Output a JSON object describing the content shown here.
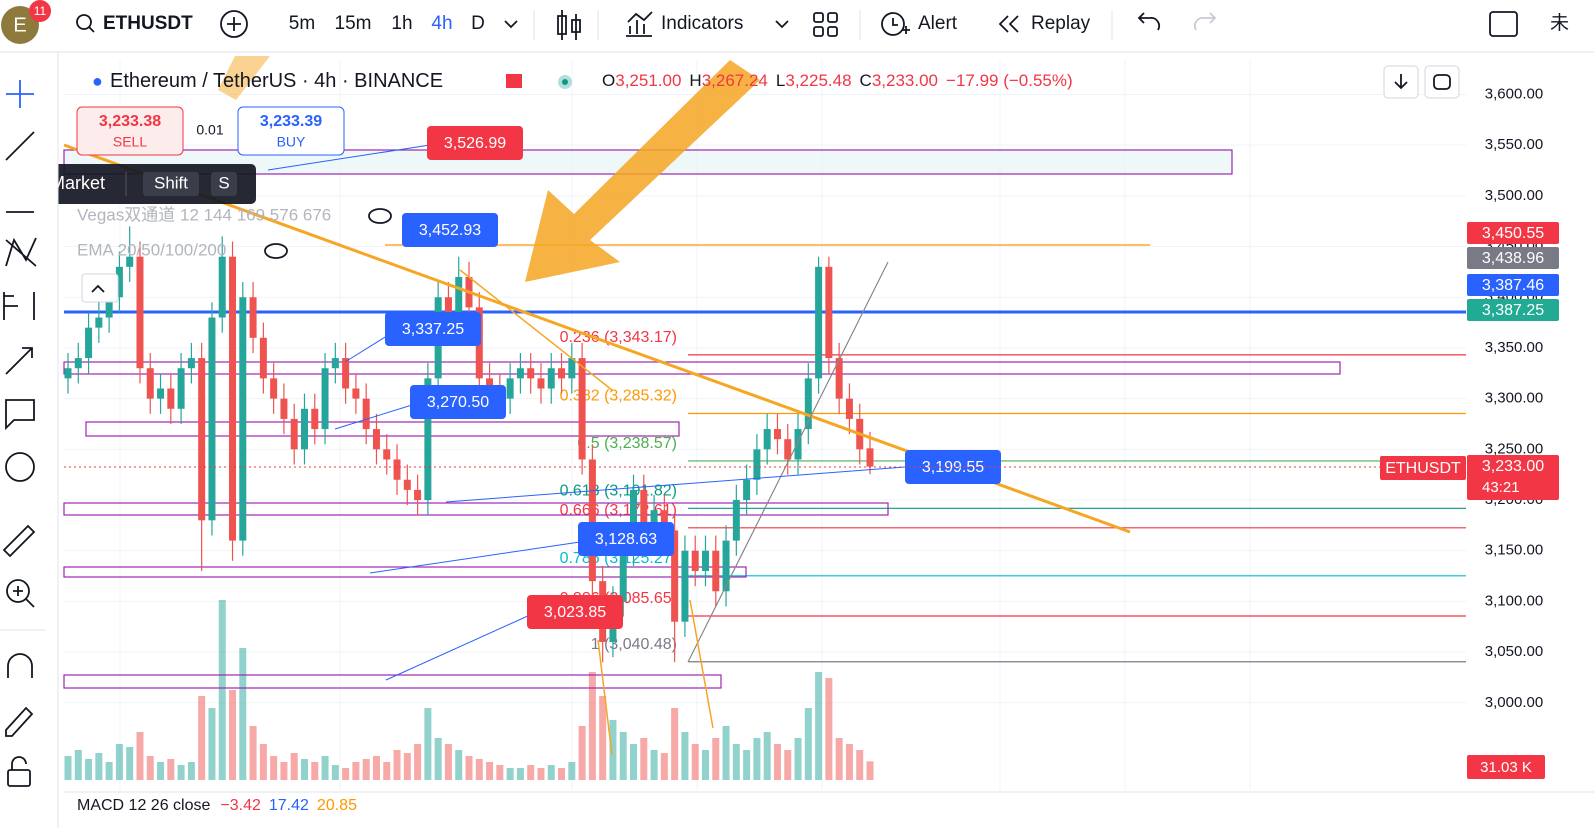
{
  "toolbar": {
    "avatar": "E",
    "badge": "11",
    "symbol": "ETHUSDT",
    "intervals": [
      "5m",
      "15m",
      "1h",
      "4h",
      "D"
    ],
    "indicators": "Indicators",
    "alert": "Alert",
    "replay": "Replay",
    "cut_text": "未"
  },
  "legend": {
    "title": "Ethereum / TetherUS · 4h · BINANCE",
    "o_key": "O",
    "o": "3,251.00",
    "h_key": "H",
    "h": "3,267.24",
    "l_key": "L",
    "l": "3,225.48",
    "c_key": "C",
    "c": "3,233.00",
    "change": "−17.99 (−0.55%)"
  },
  "trade": {
    "sell_price": "3,233.38",
    "sell": "SELL",
    "qty": "0.01",
    "buy_price": "3,233.39",
    "buy": "BUY"
  },
  "tooltip": {
    "text": "Sell Market",
    "key1": "Shift",
    "key2": "S"
  },
  "indicators": [
    "Vegas双通道 12 144 169 576 676",
    "EMA 20/50/100/200"
  ],
  "macd": {
    "name": "MACD 12 26 close",
    "values": [
      "−3.42",
      "17.42",
      "20.85"
    ]
  },
  "chart_data": {
    "type": "candlestick",
    "ylim": [
      2914,
      3634
    ],
    "yticks": [
      {
        "value": 3000,
        "label": "3,000.00"
      },
      {
        "value": 3050,
        "label": "3,050.00"
      },
      {
        "value": 3100,
        "label": "3,100.00"
      },
      {
        "value": 3150,
        "label": "3,150.00"
      },
      {
        "value": 3200,
        "label": "3,200.00"
      },
      {
        "value": 3250,
        "label": "3,250.00"
      },
      {
        "value": 3300,
        "label": "3,300.00"
      },
      {
        "value": 3350,
        "label": "3,350.00"
      },
      {
        "value": 3400,
        "label": "3,400.00"
      },
      {
        "value": 3450,
        "label": "3,450.00"
      },
      {
        "value": 3500,
        "label": "3,500.00"
      },
      {
        "value": 3550,
        "label": "3,550.00"
      },
      {
        "value": 3600,
        "label": "3,600.00"
      }
    ],
    "open": [
      3320,
      3330,
      3340,
      3370,
      3380,
      3400,
      3430,
      3440,
      3330,
      3300,
      3310,
      3290,
      3330,
      3340,
      3180,
      3380,
      3440,
      3160,
      3400,
      3360,
      3320,
      3300,
      3280,
      3250,
      3290,
      3270,
      3330,
      3340,
      3310,
      3300,
      3270,
      3250,
      3240,
      3220,
      3210,
      3200,
      3320,
      3400,
      3380,
      3420,
      3390,
      3320,
      3310,
      3300,
      3320,
      3330,
      3320,
      3310,
      3330,
      3320,
      3340,
      3240,
      3120,
      3060,
      3100,
      3150,
      3210,
      3170,
      3190,
      3170,
      3080,
      3150,
      3130,
      3150,
      3110,
      3160,
      3200,
      3220,
      3250,
      3270,
      3260,
      3240,
      3270,
      3320,
      3430,
      3340,
      3300,
      3280,
      3251
    ],
    "high": [
      3345,
      3355,
      3385,
      3395,
      3415,
      3445,
      3470,
      3455,
      3345,
      3325,
      3325,
      3345,
      3355,
      3355,
      3395,
      3460,
      3455,
      3415,
      3415,
      3375,
      3335,
      3315,
      3295,
      3305,
      3305,
      3345,
      3355,
      3355,
      3325,
      3315,
      3285,
      3265,
      3255,
      3235,
      3225,
      3335,
      3415,
      3415,
      3440,
      3435,
      3405,
      3335,
      3325,
      3335,
      3345,
      3345,
      3335,
      3345,
      3345,
      3355,
      3355,
      3255,
      3135,
      3115,
      3165,
      3225,
      3225,
      3205,
      3205,
      3185,
      3165,
      3165,
      3165,
      3165,
      3175,
      3215,
      3235,
      3265,
      3285,
      3285,
      3275,
      3285,
      3335,
      3440,
      3440,
      3355,
      3315,
      3295,
      3267.24
    ],
    "low": [
      3305,
      3315,
      3325,
      3355,
      3365,
      3385,
      3415,
      3315,
      3285,
      3285,
      3275,
      3275,
      3315,
      3130,
      3165,
      3365,
      3140,
      3145,
      3345,
      3305,
      3285,
      3265,
      3235,
      3235,
      3255,
      3255,
      3315,
      3295,
      3285,
      3255,
      3235,
      3225,
      3205,
      3195,
      3185,
      3185,
      3305,
      3365,
      3365,
      3375,
      3305,
      3295,
      3285,
      3285,
      3305,
      3305,
      3295,
      3295,
      3305,
      3305,
      3225,
      3105,
      3040,
      3045,
      3085,
      3135,
      3155,
      3155,
      3155,
      3040,
      3065,
      3115,
      3115,
      3095,
      3095,
      3145,
      3185,
      3205,
      3235,
      3245,
      3225,
      3225,
      3255,
      3305,
      3325,
      3285,
      3265,
      3235,
      3225.48
    ],
    "close": [
      3330,
      3340,
      3370,
      3380,
      3400,
      3430,
      3440,
      3330,
      3300,
      3310,
      3290,
      3330,
      3340,
      3180,
      3380,
      3440,
      3160,
      3400,
      3360,
      3320,
      3300,
      3280,
      3250,
      3290,
      3270,
      3330,
      3340,
      3310,
      3300,
      3270,
      3250,
      3240,
      3220,
      3210,
      3200,
      3320,
      3400,
      3380,
      3420,
      3390,
      3320,
      3310,
      3300,
      3320,
      3330,
      3320,
      3310,
      3330,
      3320,
      3340,
      3240,
      3120,
      3060,
      3100,
      3150,
      3210,
      3170,
      3190,
      3170,
      3080,
      3150,
      3130,
      3150,
      3110,
      3160,
      3200,
      3220,
      3250,
      3270,
      3260,
      3240,
      3270,
      3320,
      3430,
      3340,
      3300,
      3280,
      3250,
      3233
    ],
    "volume": [
      40,
      50,
      35,
      45,
      30,
      60,
      55,
      80,
      40,
      30,
      35,
      25,
      30,
      140,
      120,
      300,
      150,
      220,
      90,
      60,
      40,
      30,
      45,
      35,
      30,
      40,
      25,
      20,
      30,
      35,
      40,
      30,
      50,
      45,
      60,
      120,
      70,
      60,
      50,
      40,
      35,
      30,
      25,
      20,
      20,
      25,
      20,
      25,
      20,
      30,
      90,
      180,
      140,
      100,
      80,
      60,
      70,
      50,
      45,
      120,
      80,
      60,
      50,
      70,
      90,
      60,
      50,
      70,
      80,
      60,
      50,
      70,
      120,
      180,
      170,
      70,
      60,
      50,
      31.03
    ],
    "up_color": "#26a69a",
    "down_color": "#ef5350",
    "grid": true
  },
  "volume_label": "31.03 K",
  "price_tags": [
    {
      "label": "3,450.55",
      "color": "#f23645"
    },
    {
      "label": "3,438.96",
      "color": "#787b86"
    },
    {
      "label": "3,387.46",
      "color": "#2962ff"
    },
    {
      "label": "3,387.25",
      "color": "#22ab94"
    }
  ],
  "last_price": {
    "symbol": "ETHUSDT",
    "price": "3,233.00",
    "countdown": "43:21",
    "color": "#f23645"
  },
  "callouts": [
    {
      "label": "3,526.99",
      "color": "#f23645"
    },
    {
      "label": "3,452.93",
      "color": "#2962ff"
    },
    {
      "label": "3,337.25",
      "color": "#2962ff"
    },
    {
      "label": "3,270.50",
      "color": "#2962ff"
    },
    {
      "label": "3,199.55",
      "color": "#2962ff"
    },
    {
      "label": "3,128.63",
      "color": "#2962ff"
    },
    {
      "label": "3,023.85",
      "color": "#f23645"
    }
  ],
  "fib": [
    {
      "label": "0.236 (3,343.17)",
      "price": 3343.17,
      "color": "#f23645"
    },
    {
      "label": "0.382 (3,285.32)",
      "price": 3285.32,
      "color": "#ff9800"
    },
    {
      "label": "0.5 (3,238.57)",
      "price": 3238.57,
      "color": "#4caf50"
    },
    {
      "label": "0.618 (3,191.82)",
      "price": 3191.82,
      "color": "#089981"
    },
    {
      "label": "0.666 (3,172.61)",
      "price": 3172.61,
      "color": "#f23645"
    },
    {
      "label": "0.786 (3,125.27)",
      "price": 3125.27,
      "color": "#00bcd4"
    },
    {
      "label": "0.886 (3,085.65)",
      "price": 3085.65,
      "color": "#f23645"
    },
    {
      "label": "1 (3,040.48)",
      "price": 3040.48,
      "color": "#787b86"
    }
  ]
}
